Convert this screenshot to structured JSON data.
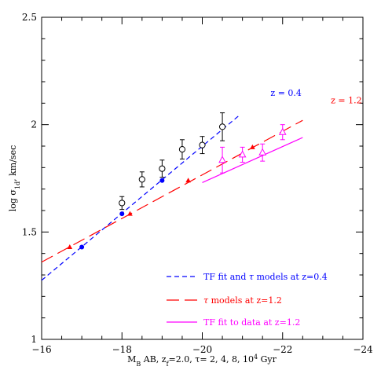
{
  "chart_data": {
    "type": "scatter",
    "title": "",
    "xlabel_main": "M",
    "xlabel_sub": "B",
    "xlabel_rest1": " AB, z",
    "xlabel_sub2": "f",
    "xlabel_rest2": "=2.0, τ= 2, 4, 8, 10",
    "xlabel_sup": "4",
    "xlabel_rest3": " Gyr",
    "ylabel_main": "log σ",
    "ylabel_sub": "1d",
    "ylabel_rest": ", km/sec",
    "xlim": [
      -16,
      -24
    ],
    "ylim": [
      1,
      2.5
    ],
    "x_ticks": [
      -16,
      -18,
      -20,
      -22,
      -24
    ],
    "x_tick_labels": [
      "−16",
      "−18",
      "−20",
      "−22",
      "−24"
    ],
    "y_ticks": [
      1,
      1.5,
      2,
      2.5
    ],
    "y_tick_labels": [
      "1",
      "1.5",
      "2",
      "2.5"
    ],
    "annotations": [
      {
        "text": "z = 0.4",
        "color": "#0000ff",
        "x": -21.7,
        "y": 2.135
      },
      {
        "text": "z = 1.2",
        "color": "#ff0000",
        "x": -23.2,
        "y": 2.1
      }
    ],
    "series": [
      {
        "name": "TF fit and τ models at z=0.4",
        "kind": "line",
        "style": "short-dash",
        "color": "#0000ff",
        "x": [
          -16,
          -20.9
        ],
        "y": [
          1.275,
          2.04
        ]
      },
      {
        "name": "τ models at z=1.2",
        "kind": "line",
        "style": "long-dash",
        "color": "#ff0000",
        "x": [
          -16,
          -22.5
        ],
        "y": [
          1.36,
          2.02
        ]
      },
      {
        "name": "TF fit to data at z=1.2",
        "kind": "line",
        "style": "solid",
        "color": "#ff00ff",
        "x": [
          -20,
          -22.5
        ],
        "y": [
          1.73,
          1.94
        ]
      },
      {
        "name": "τ models z=0.4 (points)",
        "kind": "points",
        "marker": "filled-circle",
        "color": "#0000ff",
        "x": [
          -17,
          -18,
          -19,
          -20
        ],
        "y": [
          1.43,
          1.585,
          1.74,
          1.9
        ]
      },
      {
        "name": "τ models z=1.2 (points)",
        "kind": "points",
        "marker": "filled-triangle",
        "color": "#ff0000",
        "x": [
          -16.7,
          -18.2,
          -19.65,
          -21.25
        ],
        "y": [
          1.43,
          1.585,
          1.74,
          1.895
        ]
      },
      {
        "name": "data z=0.4",
        "kind": "points",
        "marker": "open-circle",
        "color": "#000000",
        "x": [
          -18,
          -18.5,
          -19,
          -19.5,
          -20,
          -20.5
        ],
        "y": [
          1.635,
          1.745,
          1.795,
          1.885,
          1.905,
          1.99
        ],
        "err": [
          0.03,
          0.035,
          0.04,
          0.045,
          0.04,
          0.065
        ]
      },
      {
        "name": "data z=1.2",
        "kind": "points",
        "marker": "open-triangle",
        "color": "#ff00ff",
        "x": [
          -20.5,
          -21,
          -21.5,
          -22
        ],
        "y": [
          1.835,
          1.86,
          1.87,
          1.965
        ],
        "err": [
          0.06,
          0.035,
          0.04,
          0.035
        ]
      }
    ],
    "legend": {
      "placement": "bottom-right",
      "entries": [
        {
          "label_pre": "TF fit and ",
          "label_sym": "τ",
          "label_post": " models at z=0.4",
          "color": "#0000ff",
          "style": "short-dash"
        },
        {
          "label_pre": "",
          "label_sym": "τ",
          "label_post": " models at z=1.2",
          "color": "#ff0000",
          "style": "long-dash"
        },
        {
          "label_pre": "TF fit to data at z=1.2",
          "label_sym": "",
          "label_post": "",
          "color": "#ff00ff",
          "style": "solid"
        }
      ]
    }
  }
}
